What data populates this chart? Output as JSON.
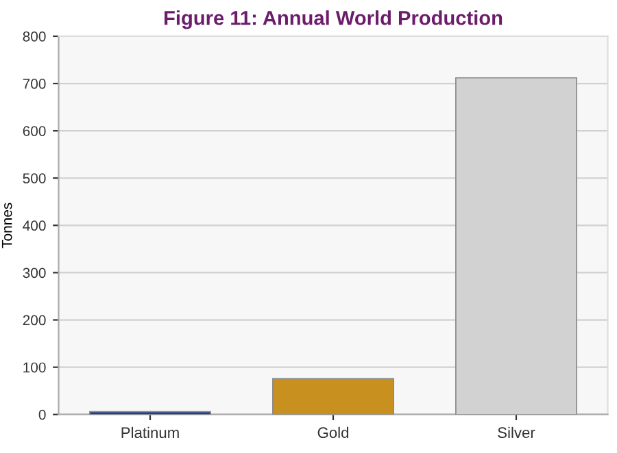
{
  "chart_data": {
    "type": "bar",
    "title": "Figure 11: Annual World Production",
    "ylabel": "Tonnes",
    "categories": [
      "Platinum",
      "Gold",
      "Silver"
    ],
    "values": [
      6,
      76,
      712
    ],
    "colors": [
      "#1f3f8f",
      "#c8901e",
      "#d2d2d2"
    ],
    "ylim": [
      0,
      800
    ],
    "yticks": [
      0,
      100,
      200,
      300,
      400,
      500,
      600,
      700,
      800
    ],
    "grid": "y"
  }
}
